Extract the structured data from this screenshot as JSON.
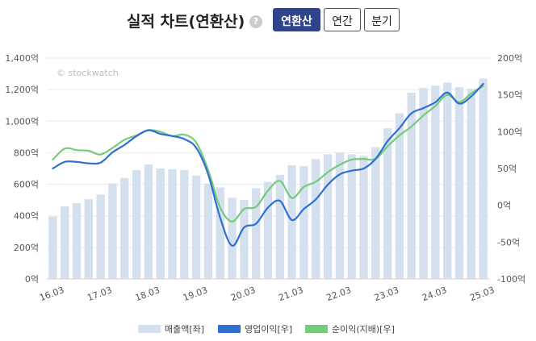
{
  "header": {
    "title": "실적 차트(연환산)",
    "help_icon": "question-circle-icon",
    "help_glyph": "?",
    "tabs": [
      {
        "label": "연환산",
        "active": true
      },
      {
        "label": "연간",
        "active": false
      },
      {
        "label": "분기",
        "active": false
      }
    ]
  },
  "watermark": "© stockwatch",
  "chart_data": {
    "type": "bar",
    "x_labels": [
      "16.03",
      "17.03",
      "18.03",
      "19.03",
      "20.03",
      "21.03",
      "22.03",
      "23.03",
      "24.03",
      "25.03"
    ],
    "y_left": {
      "min": 0,
      "max": 1400,
      "ticks": [
        "0억",
        "200억",
        "400억",
        "600억",
        "800억",
        "1,000억",
        "1,200억",
        "1,400억"
      ]
    },
    "y_right": {
      "min": -100,
      "max": 200,
      "ticks": [
        "-100억",
        "-50억",
        "0억",
        "50억",
        "100억",
        "150억",
        "200억"
      ]
    },
    "grid": true,
    "legend_position": "bottom",
    "series": [
      {
        "name": "매출액[좌]",
        "type": "bar",
        "axis": "left",
        "color": "#d5e0ee",
        "values": [
          395,
          460,
          480,
          505,
          535,
          605,
          640,
          690,
          725,
          700,
          695,
          690,
          655,
          605,
          580,
          515,
          500,
          575,
          615,
          660,
          720,
          715,
          760,
          790,
          800,
          790,
          780,
          835,
          955,
          1050,
          1180,
          1210,
          1225,
          1245,
          1215,
          1205,
          1270
        ]
      },
      {
        "name": "영업이익[우]",
        "type": "line",
        "axis": "right",
        "color": "#2e6fd0",
        "values": [
          50,
          59,
          59,
          57,
          58,
          72,
          82,
          94,
          102,
          97,
          94,
          90,
          78,
          42,
          -17,
          -55,
          -30,
          -25,
          -3,
          6,
          -20,
          -5,
          8,
          28,
          42,
          47,
          50,
          63,
          87,
          105,
          125,
          132,
          140,
          153,
          138,
          148,
          165
        ]
      },
      {
        "name": "순이익(지배)[우]",
        "type": "line",
        "axis": "right",
        "color": "#74cc7a",
        "values": [
          62,
          77,
          75,
          74,
          69,
          78,
          89,
          95,
          102,
          100,
          94,
          96,
          85,
          48,
          -3,
          -22,
          -5,
          -2,
          20,
          33,
          10,
          25,
          32,
          45,
          55,
          62,
          63,
          63,
          80,
          95,
          107,
          122,
          135,
          150,
          140,
          152,
          162
        ]
      }
    ]
  }
}
